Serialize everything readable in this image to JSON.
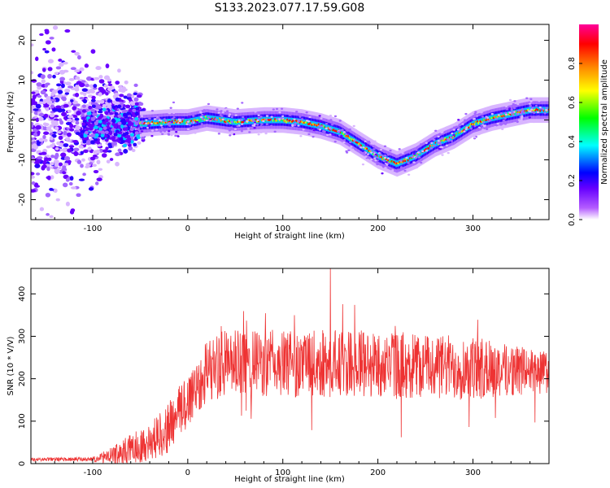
{
  "figure": {
    "title": "S133.2023.077.17.59.G08"
  },
  "chart_data": [
    {
      "type": "heatmap",
      "xlabel": "Height of straight line (km)",
      "ylabel": "Frequency (Hz)",
      "xlim": [
        -165,
        380
      ],
      "ylim": [
        -25,
        24
      ],
      "x_ticks": [
        -100,
        0,
        100,
        200,
        300
      ],
      "y_ticks": [
        -20,
        -10,
        0,
        10,
        20
      ],
      "grid": false,
      "colorbar": {
        "label": "Normalized spectral amplitude",
        "range": [
          0,
          1
        ],
        "ticks": [
          0.0,
          0.2,
          0.4,
          0.6,
          0.8
        ],
        "colormap": [
          "#ffffff",
          "#6600ff",
          "#0000ff",
          "#00ffff",
          "#00ff00",
          "#ffff00",
          "#ff8800",
          "#ff0000",
          "#ff0099"
        ]
      },
      "ridge": {
        "x": [
          -50,
          -20,
          0,
          20,
          50,
          80,
          100,
          120,
          140,
          160,
          180,
          200,
          220,
          240,
          260,
          280,
          300,
          320,
          340,
          360,
          380
        ],
        "y": [
          -1,
          -0.5,
          -0.5,
          0.5,
          -0.5,
          0,
          0,
          -0.5,
          -1.5,
          -3,
          -6,
          -9,
          -11,
          -9,
          -6,
          -4,
          -1,
          0.5,
          1.5,
          2.5,
          2.5
        ]
      },
      "noise_region": {
        "x_range": [
          -165,
          -50
        ],
        "y_spread": [
          -25,
          24
        ]
      }
    },
    {
      "type": "line",
      "xlabel": "Height of straight line (km)",
      "ylabel": "SNR (10 * V/V)",
      "xlim": [
        -165,
        380
      ],
      "ylim": [
        0,
        460
      ],
      "x_ticks": [
        -100,
        0,
        100,
        200,
        300
      ],
      "y_ticks": [
        0,
        100,
        200,
        300,
        400
      ],
      "grid": false,
      "color": "#ee3333",
      "envelope": {
        "x": [
          -165,
          -100,
          -80,
          -60,
          -40,
          -20,
          0,
          20,
          40,
          100,
          200,
          300,
          380
        ],
        "baseline": [
          10,
          10,
          18,
          35,
          50,
          85,
          150,
          220,
          235,
          235,
          235,
          225,
          215
        ],
        "amplitude": [
          4,
          5,
          20,
          35,
          45,
          60,
          70,
          75,
          80,
          80,
          80,
          75,
          50
        ]
      },
      "peak": {
        "x": 150,
        "y": 460
      }
    }
  ]
}
